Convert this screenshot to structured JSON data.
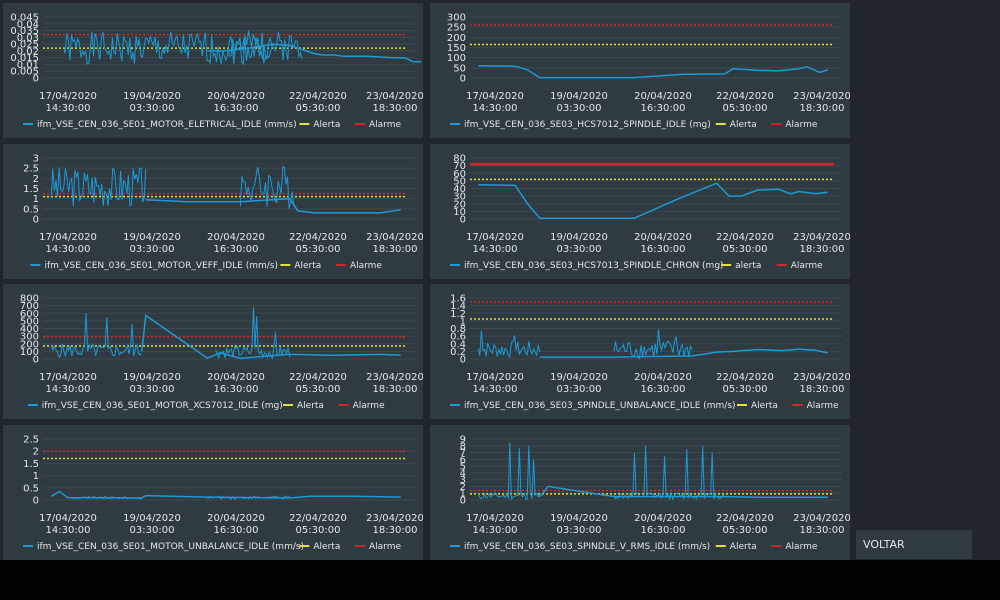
{
  "voltar_label": "VOLTAR",
  "colors": {
    "series": "#1c9ad6",
    "alerta": "#e2e13a",
    "alarme": "#d42626"
  },
  "x_ticks": [
    {
      "date": "17/04/2020",
      "time": "14:30:00"
    },
    {
      "date": "19/04/2020",
      "time": "03:30:00"
    },
    {
      "date": "20/04/2020",
      "time": "16:30:00"
    },
    {
      "date": "22/04/2020",
      "time": "05:30:00"
    },
    {
      "date": "23/04/2020",
      "time": "18:30:00"
    }
  ],
  "chart_data": [
    {
      "type": "line",
      "series_name": "ifm_VSE_CEN_036_SE01_MOTOR_ELETRICAL_IDLE (mm/s)",
      "alert_label": "Alerta",
      "alarm_label": "Alarme",
      "y_ticks": [
        "0.045",
        "0.04",
        "0.035",
        "0.03",
        "0.025",
        "0.02",
        "0.015",
        "0.01",
        "0.005",
        "0"
      ],
      "ylim": [
        0,
        0.045
      ],
      "alerta": 0.022,
      "alarme": 0.032,
      "alarme_style": "dotted",
      "values": [
        [
          0,
          0.02
        ],
        [
          0.04,
          0.02
        ],
        [
          0.1,
          0.022
        ],
        [
          0.16,
          0.025
        ],
        [
          0.2,
          0.024
        ],
        [
          0.26,
          0.018
        ],
        [
          0.28,
          0.017
        ],
        [
          0.31,
          0.017
        ],
        [
          0.33,
          0.016
        ],
        [
          0.39,
          0.016
        ],
        [
          0.45,
          0.015
        ],
        [
          0.48,
          0.015
        ],
        [
          0.5,
          0.012
        ],
        [
          0.52,
          0.012
        ]
      ],
      "noise": [
        {
          "from": -0.35,
          "to": 0.16,
          "base": 0.022,
          "amp": 0.012,
          "seed": 1
        },
        {
          "from": 0.05,
          "to": 0.23,
          "base": 0.024,
          "amp": 0.011,
          "seed": 2
        }
      ]
    },
    {
      "type": "line",
      "series_name": "ifm_VSE_CEN_036_SE03_HCS7012_SPINDLE_IDLE (mg)",
      "alert_label": "Alerta",
      "alarm_label": "Alarme",
      "y_ticks": [
        "300",
        "250",
        "200",
        "150",
        "100",
        "50",
        "0"
      ],
      "ylim": [
        0,
        300
      ],
      "alerta": 165,
      "alarme": 260,
      "alarme_style": "dotted",
      "values": [
        [
          -0.38,
          60
        ],
        [
          -0.29,
          58
        ],
        [
          -0.26,
          40
        ],
        [
          -0.23,
          2
        ],
        [
          -0.05,
          2
        ],
        [
          0.0,
          2
        ],
        [
          0.12,
          18
        ],
        [
          0.22,
          20
        ],
        [
          0.24,
          45
        ],
        [
          0.3,
          38
        ],
        [
          0.35,
          35
        ],
        [
          0.4,
          45
        ],
        [
          0.42,
          55
        ],
        [
          0.45,
          28
        ],
        [
          0.47,
          40
        ]
      ],
      "noise": []
    },
    {
      "type": "line",
      "series_name": "ifm_VSE_CEN_036_SE01_MOTOR_VEFF_IDLE (mm/s)",
      "alert_label": "Alerta",
      "alarm_label": "Alarme",
      "y_ticks": [
        "3",
        "2.5",
        "2",
        "1.5",
        "1",
        "0.5",
        "0"
      ],
      "ylim": [
        0,
        3
      ],
      "alerta": 1.1,
      "alarme": 1.25,
      "alarme_style": "dotted",
      "values": [
        [
          -0.15,
          0.95
        ],
        [
          -0.05,
          0.85
        ],
        [
          0.08,
          0.85
        ],
        [
          0.2,
          1.0
        ],
        [
          0.22,
          0.4
        ],
        [
          0.26,
          0.3
        ],
        [
          0.35,
          0.3
        ],
        [
          0.42,
          0.3
        ],
        [
          0.47,
          0.45
        ]
      ],
      "noise": [
        {
          "from": -0.38,
          "to": -0.15,
          "base": 1.6,
          "amp": 1.0,
          "seed": 3
        },
        {
          "from": 0.08,
          "to": 0.21,
          "base": 1.6,
          "amp": 1.1,
          "seed": 4
        }
      ]
    },
    {
      "type": "line",
      "series_name": "ifm_VSE_CEN_036_SE03_HCS7013_SPINDLE_CHRON (mg)",
      "alert_label": "alerta",
      "alarm_label": "Alarme",
      "y_ticks": [
        "80",
        "70",
        "60",
        "50",
        "40",
        "30",
        "20",
        "10",
        "0"
      ],
      "ylim": [
        0,
        80
      ],
      "alerta": 52,
      "alarme": 72,
      "alarme_style": "solid",
      "values": [
        [
          -0.38,
          45
        ],
        [
          -0.29,
          44
        ],
        [
          -0.26,
          20
        ],
        [
          -0.23,
          1
        ],
        [
          -0.05,
          1
        ],
        [
          0.0,
          1
        ],
        [
          0.1,
          25
        ],
        [
          0.2,
          47
        ],
        [
          0.23,
          30
        ],
        [
          0.26,
          30
        ],
        [
          0.3,
          38
        ],
        [
          0.35,
          39
        ],
        [
          0.38,
          33
        ],
        [
          0.4,
          36
        ],
        [
          0.44,
          33
        ],
        [
          0.47,
          35
        ]
      ],
      "noise": []
    },
    {
      "type": "line",
      "series_name": "ifm_VSE_CEN_036_SE01_MOTOR_XCS7012_IDLE (mg)",
      "alert_label": "Alerta",
      "alarm_label": "Alarme",
      "y_ticks": [
        "800",
        "700",
        "600",
        "500",
        "400",
        "300",
        "200",
        "100",
        "0"
      ],
      "ylim": [
        0,
        800
      ],
      "alerta": 170,
      "alarme": 290,
      "alarme_style": "dotted",
      "values": [
        [
          -0.16,
          100
        ],
        [
          -0.15,
          570
        ],
        [
          0.0,
          10
        ],
        [
          0.03,
          80
        ],
        [
          0.08,
          10
        ],
        [
          0.2,
          60
        ],
        [
          0.3,
          50
        ],
        [
          0.42,
          60
        ],
        [
          0.47,
          50
        ]
      ],
      "noise": [
        {
          "from": -0.38,
          "to": -0.16,
          "base": 110,
          "amp": 90,
          "seed": 5,
          "spikes": [
            [
              0.38,
              600
            ],
            [
              0.62,
              550
            ],
            [
              0.9,
              460
            ]
          ]
        },
        {
          "from": 0.02,
          "to": 0.2,
          "base": 90,
          "amp": 80,
          "seed": 6,
          "spikes": [
            [
              0.5,
              680
            ],
            [
              0.55,
              560
            ],
            [
              0.8,
              350
            ]
          ]
        }
      ]
    },
    {
      "type": "line",
      "series_name": "ifm_VSE_CEN_036_SE03_SPINDLE_UNBALANCE_IDLE (mm/s)",
      "alert_label": "Alerta",
      "alarm_label": "Alarme",
      "y_ticks": [
        "1.6",
        "1.4",
        "1.2",
        "1",
        "0.8",
        "0.6",
        "0.4",
        "0.2",
        "0"
      ],
      "ylim": [
        0,
        1.6
      ],
      "alerta": 1.05,
      "alarme": 1.5,
      "alarme_style": "dotted",
      "values": [
        [
          -0.23,
          0.05
        ],
        [
          -0.1,
          0.05
        ],
        [
          -0.05,
          0.05
        ],
        [
          0.14,
          0.08
        ],
        [
          0.2,
          0.18
        ],
        [
          0.24,
          0.2
        ],
        [
          0.3,
          0.25
        ],
        [
          0.36,
          0.22
        ],
        [
          0.4,
          0.26
        ],
        [
          0.44,
          0.23
        ],
        [
          0.47,
          0.16
        ]
      ],
      "noise": [
        {
          "from": -0.38,
          "to": -0.23,
          "base": 0.25,
          "amp": 0.22,
          "seed": 7,
          "spikes": [
            [
              0.05,
              0.75
            ],
            [
              0.6,
              0.62
            ]
          ]
        },
        {
          "from": -0.05,
          "to": 0.14,
          "base": 0.25,
          "amp": 0.25,
          "seed": 8,
          "spikes": [
            [
              0.5,
              0.75
            ],
            [
              0.58,
              0.78
            ],
            [
              0.8,
              0.58
            ]
          ]
        }
      ]
    },
    {
      "type": "line",
      "series_name": "ifm_VSE_CEN_036_SE01_MOTOR_UNBALANCE_IDLE (mm/s)",
      "alert_label": "Alerta",
      "alarme_label_note": "",
      "alarm_label": "Alarme",
      "y_ticks": [
        "2.5",
        "2",
        "1.5",
        "1",
        "0.5",
        "0"
      ],
      "ylim": [
        0,
        2.5
      ],
      "alerta": 1.7,
      "alarme": 2.0,
      "alarme_style": "dotted",
      "values": [
        [
          -0.38,
          0.15
        ],
        [
          -0.36,
          0.35
        ],
        [
          -0.34,
          0.1
        ],
        [
          -0.16,
          0.08
        ],
        [
          -0.15,
          0.18
        ],
        [
          0.0,
          0.12
        ],
        [
          0.2,
          0.08
        ],
        [
          0.25,
          0.15
        ],
        [
          0.35,
          0.15
        ],
        [
          0.47,
          0.12
        ]
      ],
      "noise": [
        {
          "from": -0.34,
          "to": -0.16,
          "base": 0.09,
          "amp": 0.05,
          "seed": 9
        },
        {
          "from": 0.0,
          "to": 0.2,
          "base": 0.1,
          "amp": 0.06,
          "seed": 10
        }
      ]
    },
    {
      "type": "line",
      "series_name": "ifm_VSE_CEN_036_SE03_SPINDLE_V_RMS_IDLE (mm/s)",
      "alert_label": "Alerta",
      "alarm_label": "Alarme",
      "y_ticks": [
        "9",
        "8",
        "7",
        "6",
        "5",
        "4",
        "3",
        "2",
        "1",
        "0"
      ],
      "ylim": [
        0,
        9
      ],
      "alerta": 0.9,
      "alarme": 1.4,
      "alarme_style": "dotted",
      "values": [
        [
          -0.23,
          0.5
        ],
        [
          -0.21,
          2.0
        ],
        [
          -0.05,
          0.5
        ],
        [
          0.0,
          0.5
        ],
        [
          0.22,
          0.5
        ],
        [
          0.3,
          0.4
        ],
        [
          0.47,
          0.4
        ]
      ],
      "noise": [
        {
          "from": -0.38,
          "to": -0.23,
          "base": 0.6,
          "amp": 0.5,
          "seed": 11,
          "spikes": [
            [
              0.5,
              8.5
            ],
            [
              0.66,
              7.7
            ],
            [
              0.82,
              8.0
            ],
            [
              0.9,
              6.0
            ]
          ]
        },
        {
          "from": -0.05,
          "to": 0.22,
          "base": 0.6,
          "amp": 0.5,
          "seed": 12,
          "spikes": [
            [
              0.18,
              7.0
            ],
            [
              0.28,
              8.0
            ],
            [
              0.46,
              6.5
            ],
            [
              0.66,
              7.5
            ],
            [
              0.8,
              8.0
            ],
            [
              0.88,
              7.0
            ]
          ]
        }
      ]
    }
  ]
}
